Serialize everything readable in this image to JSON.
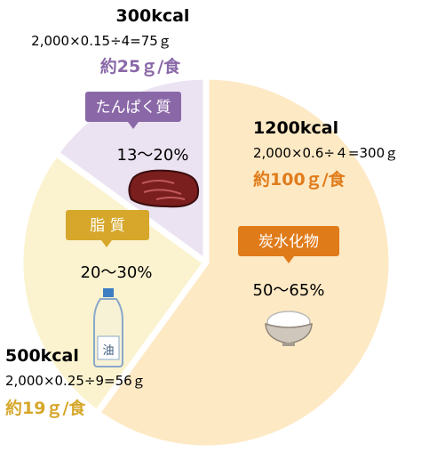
{
  "chart_data": {
    "type": "pie",
    "slices": [
      {
        "name": "炭水化物",
        "range": "50〜65%",
        "kcal": "1200kcal",
        "formula": "2,000×0.6÷４=300ｇ",
        "per_meal": "約100ｇ/食",
        "value": 60,
        "color": "#fde9c4",
        "accent": "#e07b1a",
        "icon": "rice-bowl-icon",
        "icon_text": ""
      },
      {
        "name": "脂 質",
        "range": "20〜30%",
        "kcal": "500kcal",
        "formula": "2,000×0.25÷9=56ｇ",
        "per_meal": "約19ｇ/食",
        "value": 25,
        "color": "#fbf3cf",
        "accent": "#d6a72a",
        "icon": "oil-bottle-icon",
        "icon_text": "油"
      },
      {
        "name": "たんぱく質",
        "range": "13〜20%",
        "kcal": "300kcal",
        "formula": "2,000×0.15÷4=75ｇ",
        "per_meal": "約25ｇ/食",
        "value": 15,
        "color": "#ebe3f2",
        "accent": "#8a68a8",
        "icon": "meat-icon",
        "icon_text": ""
      }
    ]
  }
}
